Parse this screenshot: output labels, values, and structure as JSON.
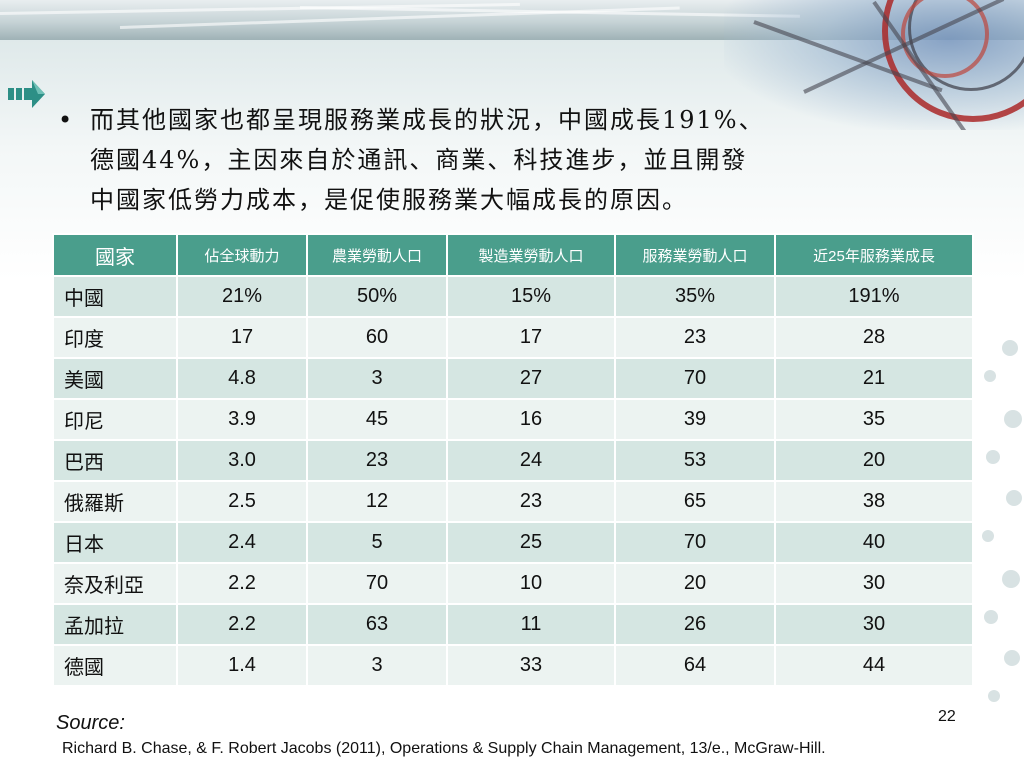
{
  "bullet": {
    "symbol": "•",
    "lines": [
      "而其他國家也都呈現服務業成長的狀況，中國成長191%、",
      "德國44%，主因來自於通訊、商業、科技進步，並且開發",
      "中國家低勞力成本，是促使服務業大幅成長的原因。"
    ]
  },
  "table": {
    "headers": [
      "國家",
      "佔全球動力",
      "農業勞動人口",
      "製造業勞動人口",
      "服務業勞動人口",
      "近25年服務業成長"
    ],
    "rows": [
      [
        "中國",
        "21%",
        "50%",
        "15%",
        "35%",
        "191%"
      ],
      [
        "印度",
        "17",
        "60",
        "17",
        "23",
        "28"
      ],
      [
        "美國",
        "4.8",
        "3",
        "27",
        "70",
        "21"
      ],
      [
        "印尼",
        "3.9",
        "45",
        "16",
        "39",
        "35"
      ],
      [
        "巴西",
        "3.0",
        "23",
        "24",
        "53",
        "20"
      ],
      [
        "俄羅斯",
        "2.5",
        "12",
        "23",
        "65",
        "38"
      ],
      [
        "日本",
        "2.4",
        "5",
        "25",
        "70",
        "40"
      ],
      [
        "奈及利亞",
        "2.2",
        "70",
        "10",
        "20",
        "30"
      ],
      [
        "孟加拉",
        "2.2",
        "63",
        "11",
        "26",
        "30"
      ],
      [
        "德國",
        "1.4",
        "3",
        "33",
        "64",
        "44"
      ]
    ]
  },
  "source": {
    "label": "Source:",
    "citation": "Richard B. Chase, & F. Robert Jacobs (2011), Operations & Supply Chain Management, 13/e., McGraw-Hill."
  },
  "page_number": "22",
  "colors": {
    "header_bg": "#4a9e8c",
    "row_odd": "#d5e6e2",
    "row_even": "#ecf3f1",
    "arrow": "#2d8f86"
  },
  "icons": {
    "arrow": "arrow-right-icon"
  }
}
